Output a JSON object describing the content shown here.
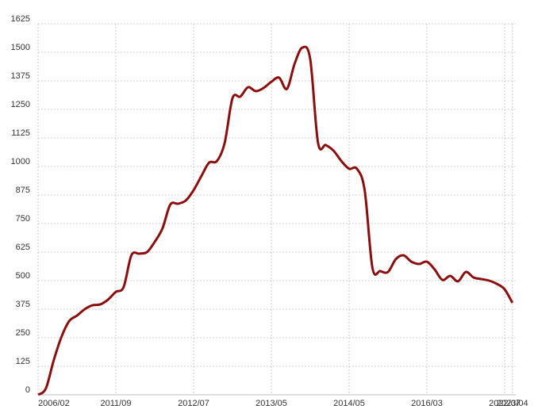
{
  "chart_data": {
    "type": "line",
    "categories": [
      "2006/02",
      null,
      null,
      null,
      null,
      null,
      null,
      null,
      null,
      null,
      "2011/09",
      null,
      null,
      null,
      null,
      null,
      null,
      null,
      null,
      null,
      "2012/07",
      null,
      null,
      null,
      null,
      null,
      null,
      null,
      null,
      null,
      "2013/05",
      null,
      null,
      null,
      null,
      null,
      null,
      null,
      null,
      null,
      "2014/05",
      null,
      null,
      null,
      null,
      null,
      null,
      null,
      null,
      null,
      "2016/03",
      null,
      null,
      null,
      null,
      null,
      null,
      null,
      null,
      null,
      "2022/07",
      "2023/04"
    ],
    "series": [
      {
        "color": "#8b0e0e",
        "values": [
          0,
          28,
          150,
          253,
          323,
          347,
          375,
          392,
          396,
          417,
          451,
          472,
          611,
          618,
          625,
          670,
          729,
          833,
          837,
          851,
          896,
          958,
          1017,
          1024,
          1104,
          1299,
          1306,
          1347,
          1330,
          1344,
          1371,
          1389,
          1340,
          1451,
          1521,
          1469,
          1104,
          1094,
          1069,
          1024,
          990,
          990,
          896,
          556,
          542,
          538,
          594,
          611,
          583,
          573,
          583,
          549,
          503,
          521,
          497,
          538,
          514,
          507,
          500,
          486,
          462,
          403
        ]
      }
    ],
    "ylim": [
      0,
      1625
    ],
    "yticks": [
      0,
      125,
      250,
      375,
      500,
      625,
      750,
      875,
      1000,
      1125,
      1250,
      1375,
      1500,
      1625
    ],
    "grid": true
  }
}
